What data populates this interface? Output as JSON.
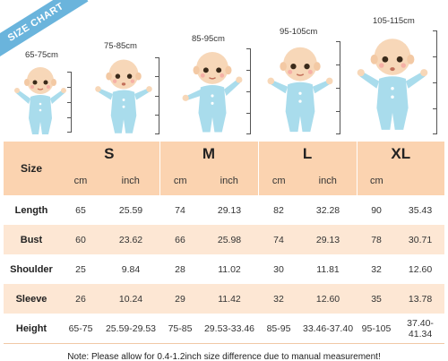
{
  "banner": "SIZE CHART",
  "babies": [
    {
      "range": "65-75cm"
    },
    {
      "range": "75-85cm"
    },
    {
      "range": "85-95cm"
    },
    {
      "range": "95-105cm"
    },
    {
      "range": "105-115cm"
    }
  ],
  "table": {
    "size_header": "Size",
    "sizes": [
      "S",
      "M",
      "L",
      "XL"
    ],
    "unit_cm": "cm",
    "unit_inch": "inch",
    "rows": [
      {
        "label": "Length",
        "values": [
          "65",
          "25.59",
          "74",
          "29.13",
          "82",
          "32.28",
          "90",
          "35.43"
        ]
      },
      {
        "label": "Bust",
        "values": [
          "60",
          "23.62",
          "66",
          "25.98",
          "74",
          "29.13",
          "78",
          "30.71"
        ]
      },
      {
        "label": "Shoulder",
        "values": [
          "25",
          "9.84",
          "28",
          "11.02",
          "30",
          "11.81",
          "32",
          "12.60"
        ]
      },
      {
        "label": "Sleeve",
        "values": [
          "26",
          "10.24",
          "29",
          "11.42",
          "32",
          "12.60",
          "35",
          "13.78"
        ]
      },
      {
        "label": "Height",
        "values": [
          "65-75",
          "25.59-29.53",
          "75-85",
          "29.53-33.46",
          "85-95",
          "33.46-37.40",
          "95-105",
          "37.40-41.34"
        ]
      }
    ],
    "note": "Note: Please allow for 0.4-1.2inch size difference due to manual measurement!"
  },
  "colors": {
    "header_peach": "#fbd3b0",
    "row_alt": "#fde7d4",
    "banner_blue": "#6ab4dc",
    "suit_blue": "#a9dcec",
    "skin": "#f7d7b8"
  }
}
